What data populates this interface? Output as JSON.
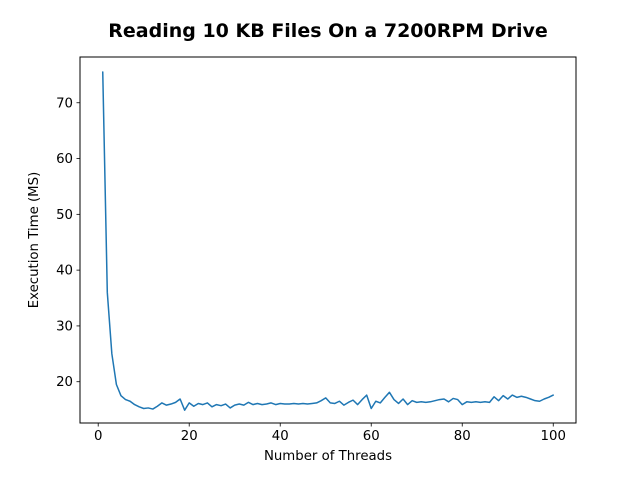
{
  "window": {
    "background": "#ffffff"
  },
  "chart_data": {
    "type": "line",
    "title": "Reading 10 KB Files On a 7200RPM Drive",
    "xlabel": "Number of Threads",
    "ylabel": "Execution Time (MS)",
    "grid": false,
    "legend": "none",
    "line_color": "#1f77b4",
    "line_width": 1.5,
    "axis_color": "#000000",
    "xlim": [
      -4,
      105
    ],
    "ylim": [
      12.6,
      78.2
    ],
    "xticks": [
      0,
      20,
      40,
      60,
      80,
      100
    ],
    "yticks": [
      20,
      30,
      40,
      50,
      60,
      70
    ],
    "series": [
      {
        "name": "execution-time-ms",
        "x": [
          1,
          2,
          3,
          4,
          5,
          6,
          7,
          8,
          9,
          10,
          11,
          12,
          13,
          14,
          15,
          16,
          17,
          18,
          19,
          20,
          21,
          22,
          23,
          24,
          25,
          26,
          27,
          28,
          29,
          30,
          31,
          32,
          33,
          34,
          35,
          36,
          37,
          38,
          39,
          40,
          41,
          42,
          43,
          44,
          45,
          46,
          47,
          48,
          49,
          50,
          51,
          52,
          53,
          54,
          55,
          56,
          57,
          58,
          59,
          60,
          61,
          62,
          63,
          64,
          65,
          66,
          67,
          68,
          69,
          70,
          71,
          72,
          73,
          74,
          75,
          76,
          77,
          78,
          79,
          80,
          81,
          82,
          83,
          84,
          85,
          86,
          87,
          88,
          89,
          90,
          91,
          92,
          93,
          94,
          95,
          96,
          97,
          98,
          99,
          100
        ],
        "y": [
          75.5,
          36.0,
          25.0,
          19.5,
          17.5,
          16.8,
          16.5,
          15.9,
          15.5,
          15.2,
          15.3,
          15.1,
          15.6,
          16.2,
          15.8,
          16.0,
          16.3,
          16.9,
          14.9,
          16.2,
          15.6,
          16.1,
          15.9,
          16.2,
          15.5,
          15.9,
          15.7,
          16.0,
          15.3,
          15.8,
          16.0,
          15.8,
          16.3,
          15.9,
          16.1,
          15.9,
          16.0,
          16.2,
          15.9,
          16.1,
          16.0,
          16.0,
          16.1,
          16.0,
          16.1,
          16.0,
          16.1,
          16.2,
          16.6,
          17.1,
          16.2,
          16.1,
          16.5,
          15.8,
          16.3,
          16.7,
          15.9,
          16.8,
          17.6,
          15.2,
          16.5,
          16.2,
          17.2,
          18.1,
          16.8,
          16.1,
          16.9,
          15.9,
          16.6,
          16.3,
          16.4,
          16.3,
          16.4,
          16.6,
          16.8,
          16.9,
          16.4,
          17.0,
          16.8,
          15.9,
          16.4,
          16.3,
          16.4,
          16.3,
          16.4,
          16.3,
          17.3,
          16.6,
          17.5,
          16.9,
          17.6,
          17.2,
          17.4,
          17.2,
          16.9,
          16.6,
          16.5,
          16.9,
          17.2,
          17.6
        ]
      }
    ]
  }
}
